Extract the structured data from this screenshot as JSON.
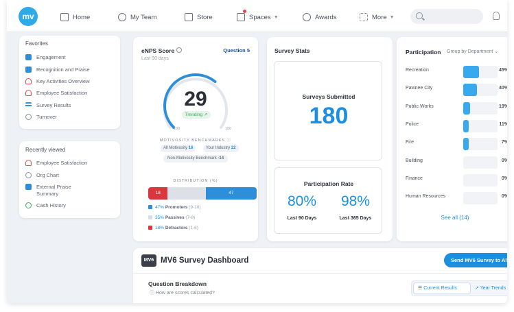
{
  "nav": {
    "logo": "mv",
    "home": "Home",
    "team": "My Team",
    "store": "Store",
    "spaces": "Spaces",
    "awards": "Awards",
    "more": "More"
  },
  "favorites": {
    "title": "Favorites",
    "items": [
      "Engagement",
      "Recognition and Praise",
      "Key Activities Overview",
      "Employee Satisfaction",
      "Survey Results",
      "Turnover"
    ]
  },
  "recent": {
    "title": "Recently viewed",
    "items": [
      "Employee Satisfaction",
      "Org Chart",
      "External Praise",
      "Summary",
      "Cash History"
    ]
  },
  "enps": {
    "title": "eNPS Score",
    "info_icon": "info-icon",
    "question": "Question 5",
    "period": "Last 90 days",
    "score": "29",
    "trend": "Trending",
    "gauge_min": "-100",
    "gauge_max": "100",
    "gauge_value": 29,
    "bench_title": "MOTIVOSITY BENCHMARKS",
    "bench_all": "All Motivosity",
    "bench_all_val": "16",
    "bench_ind": "Your Industry",
    "bench_ind_val": "22",
    "bench_non": "Non-Motivosity Benchmark",
    "bench_non_val": "-14",
    "dist_title": "DISTRIBUTION (%)",
    "dist_detractors": "18",
    "dist_promoters": "47",
    "legend": [
      {
        "pct": "47%",
        "label": "Promoters",
        "range": "(9-10)",
        "color": "#2e8fd8"
      },
      {
        "pct": "35%",
        "label": "Passives",
        "range": "(7-8)",
        "color": "#d9dde3"
      },
      {
        "pct": "18%",
        "label": "Detractors",
        "range": "(1-6)",
        "color": "#d9363e"
      }
    ]
  },
  "stats": {
    "title": "Survey Stats",
    "submitted_label": "Surveys Submitted",
    "submitted_value": "180",
    "participation_label": "Participation Rate",
    "rate90": "80%",
    "rate90_label": "Last 90 Days",
    "rate365": "98%",
    "rate365_label": "Last 365 Days"
  },
  "participation": {
    "title": "Participation",
    "group": "Group by Department",
    "rows": [
      {
        "name": "Recreation",
        "pct": "45%",
        "fill": 0.45
      },
      {
        "name": "Pawnee City",
        "pct": "40%",
        "fill": 0.4
      },
      {
        "name": "Public Works",
        "pct": "19%",
        "fill": 0.19
      },
      {
        "name": "Police",
        "pct": "11%",
        "fill": 0.11
      },
      {
        "name": "Fire",
        "pct": "7%",
        "fill": 0.07
      },
      {
        "name": "Building",
        "pct": "0%",
        "fill": 0
      },
      {
        "name": "Finance",
        "pct": "0%",
        "fill": 0
      },
      {
        "name": "Human Resources",
        "pct": "0%",
        "fill": 0
      }
    ],
    "see_all": "See all (14)"
  },
  "dashboard": {
    "logo": "MV6",
    "title": "MV6 Survey Dashboard",
    "send_button": "Send MV6 Survey to All",
    "breakdown": "Question Breakdown",
    "how": "How are scores calculated?",
    "tab_current": "Current Results",
    "tab_trends": "Year Trends"
  }
}
